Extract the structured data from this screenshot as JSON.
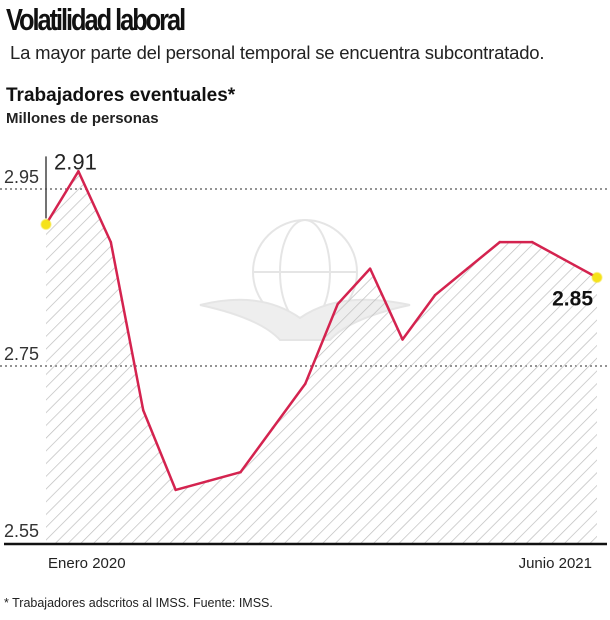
{
  "header": {
    "title": "Volatilidad laboral",
    "subtitle": "La mayor parte del personal temporal se encuentra subcontratado."
  },
  "footnote": "* Trabajadores adscritos al IMSS. Fuente: IMSS.",
  "colors": {
    "line": "#d4234f",
    "marker": "#f5e21a",
    "hatch": "#bdbdbd",
    "grid": "#555555",
    "axis": "#111111"
  },
  "chart_data": {
    "type": "area",
    "title": "Trabajadores eventuales*",
    "subtitle": "Millones de personas",
    "xlabel": "",
    "ylabel": "Millones de personas",
    "x": [
      "2020-01",
      "2020-02",
      "2020-03",
      "2020-04",
      "2020-05",
      "2020-06",
      "2020-07",
      "2020-08",
      "2020-09",
      "2020-10",
      "2020-11",
      "2020-12",
      "2021-01",
      "2021-02",
      "2021-03",
      "2021-04",
      "2021-05",
      "2021-06"
    ],
    "x_tick_labels": [
      {
        "index": 0,
        "label": "Enero 2020"
      },
      {
        "index": 17,
        "label": "Junio 2021"
      }
    ],
    "series": [
      {
        "name": "Trabajadores eventuales",
        "values": [
          2.91,
          2.97,
          2.89,
          2.7,
          2.61,
          2.62,
          2.63,
          2.68,
          2.73,
          2.82,
          2.86,
          2.78,
          2.83,
          2.86,
          2.89,
          2.89,
          2.87,
          2.85
        ]
      }
    ],
    "ylim": [
      2.55,
      2.97
    ],
    "y_ticks": [
      2.55,
      2.75,
      2.95
    ],
    "y_tick_labels": [
      "2.55",
      "2.75",
      "2.95"
    ],
    "grid": "dotted horizontal at 2.75 and 2.95",
    "annotations": [
      {
        "index": 0,
        "label": "2.91"
      },
      {
        "index": 17,
        "label": "2.85"
      }
    ],
    "legend": "none"
  }
}
